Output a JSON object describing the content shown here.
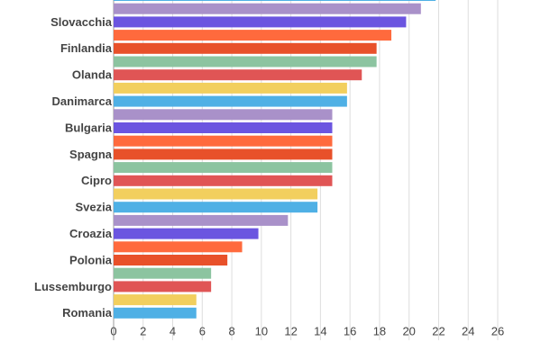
{
  "chart_data": {
    "type": "hbar",
    "categories": [
      null,
      null,
      "Slovacchia",
      null,
      "Finlandia",
      null,
      "Olanda",
      null,
      "Danimarca",
      null,
      "Bulgaria",
      null,
      "Spagna",
      null,
      "Cipro",
      null,
      "Svezia",
      null,
      "Croazia",
      null,
      "Polonia",
      null,
      "Lussemburgo",
      null,
      "Romania"
    ],
    "values": [
      21.8,
      20.8,
      19.8,
      18.8,
      17.8,
      17.8,
      16.8,
      15.8,
      15.8,
      14.8,
      14.8,
      14.8,
      14.8,
      14.8,
      14.8,
      13.8,
      13.8,
      11.8,
      9.8,
      8.7,
      7.7,
      6.6,
      6.6,
      5.6,
      5.6
    ],
    "colors": [
      "#4fb0e5",
      "#a991c9",
      "#6b55e0",
      "#ff6a3d",
      "#e8512a",
      "#8cc4a0",
      "#e05555",
      "#f2cf5e",
      "#4fb0e5",
      "#a991c9",
      "#6b55e0",
      "#ff6a3d",
      "#e8512a",
      "#8cc4a0",
      "#e05555",
      "#f2cf5e",
      "#4fb0e5",
      "#a991c9",
      "#6b55e0",
      "#ff6a3d",
      "#e8512a",
      "#8cc4a0",
      "#e05555",
      "#f2cf5e",
      "#4fb0e5"
    ],
    "xlim": [
      0,
      26
    ],
    "xticks": [
      0,
      2,
      4,
      6,
      8,
      10,
      12,
      14,
      16,
      18,
      20,
      22,
      24,
      26
    ],
    "grid": true
  }
}
